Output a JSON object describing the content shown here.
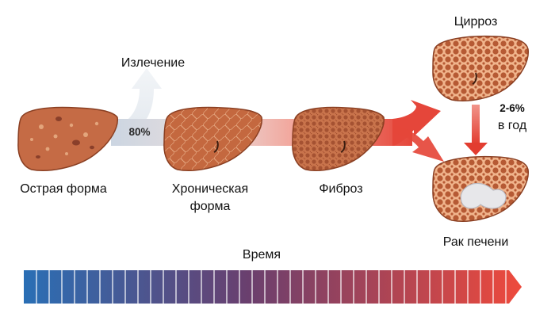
{
  "labels": {
    "recovery": "Излечение",
    "percent_80": "80%",
    "acute": "Острая форма",
    "chronic_line1": "Хроническая",
    "chronic_line2": "форма",
    "fibrosis": "Фиброз",
    "cirrhosis": "Цирроз",
    "rate_line1": "2-6%",
    "rate_line2": "в год",
    "cancer": "Рак печени",
    "time": "Время"
  },
  "colors": {
    "liver_fill": "#c56b45",
    "liver_edge": "#8a3f22",
    "arrow_light": "#d4dce6",
    "arrow_red": "#e8473a",
    "time_start": "#2a6fb5",
    "time_mid": "#6a3f6e",
    "time_end": "#e8473a"
  },
  "icons": [
    "liver-acute-icon",
    "liver-chronic-icon",
    "liver-fibrosis-icon",
    "liver-cirrhosis-icon",
    "liver-cancer-icon"
  ]
}
